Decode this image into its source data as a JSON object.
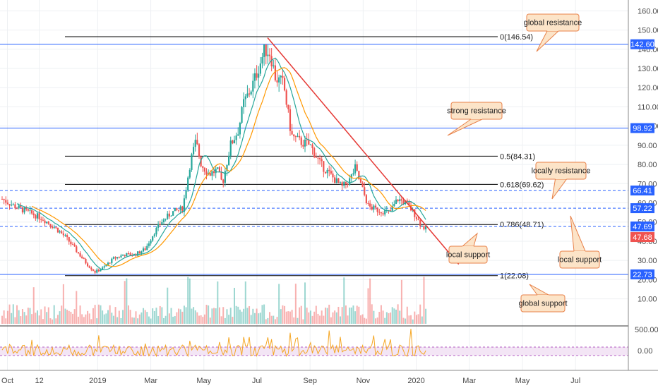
{
  "chart_data": {
    "type": "candlestick",
    "colors": {
      "up": "#26a69a",
      "down": "#ef5350",
      "ma_fast": "#26a69a",
      "ma_slow": "#ff9800",
      "hline": "#2962ff",
      "trendline": "#e53935",
      "fib": "#000000",
      "note_bg": "#fce4c8",
      "note_border": "#e8824a",
      "osc": "#f5a623",
      "osc_band": "#f3e5f5"
    },
    "y_axis": {
      "range": [
        0,
        165
      ],
      "ticks": [
        "160.00",
        "150.00",
        "140.00",
        "130.00",
        "120.00",
        "110.00",
        "100.00",
        "90.00",
        "80.00",
        "70.00",
        "60.00",
        "50.00",
        "40.00",
        "30.00",
        "20.00",
        "10.00"
      ],
      "tick_values": [
        160,
        150,
        140,
        130,
        120,
        110,
        100,
        90,
        80,
        70,
        60,
        50,
        40,
        30,
        20,
        10
      ]
    },
    "osc_axis": {
      "ticks": [
        "500.00",
        "0.00"
      ],
      "tick_values": [
        500,
        0
      ]
    },
    "x_axis": {
      "ticks": [
        "Oct",
        "12",
        "2019",
        "Mar",
        "May",
        "Jul",
        "Sep",
        "Nov",
        "2020",
        "Mar",
        "May",
        "Jul"
      ],
      "tick_positions": [
        0.2,
        1.4,
        3.6,
        5.6,
        7.6,
        9.6,
        11.6,
        13.6,
        15.6,
        17.6,
        19.6,
        21.6
      ]
    },
    "price_path": [
      [
        0,
        62
      ],
      [
        0.5,
        58
      ],
      [
        1.0,
        55
      ],
      [
        1.5,
        52
      ],
      [
        2.0,
        47
      ],
      [
        2.4,
        42
      ],
      [
        2.8,
        35
      ],
      [
        3.2,
        28
      ],
      [
        3.5,
        24
      ],
      [
        3.8,
        26
      ],
      [
        4.2,
        31
      ],
      [
        4.6,
        33
      ],
      [
        5.0,
        33
      ],
      [
        5.4,
        36
      ],
      [
        5.7,
        44
      ],
      [
        6.0,
        50
      ],
      [
        6.4,
        55
      ],
      [
        6.8,
        57
      ],
      [
        7.1,
        82
      ],
      [
        7.3,
        92
      ],
      [
        7.5,
        80
      ],
      [
        7.8,
        75
      ],
      [
        8.1,
        77
      ],
      [
        8.3,
        70
      ],
      [
        8.6,
        90
      ],
      [
        8.9,
        98
      ],
      [
        9.1,
        112
      ],
      [
        9.4,
        120
      ],
      [
        9.7,
        132
      ],
      [
        9.9,
        140
      ],
      [
        10.1,
        138
      ],
      [
        10.3,
        125
      ],
      [
        10.6,
        122
      ],
      [
        10.9,
        95
      ],
      [
        11.2,
        92
      ],
      [
        11.6,
        90
      ],
      [
        12.0,
        80
      ],
      [
        12.4,
        74
      ],
      [
        12.8,
        68
      ],
      [
        13.1,
        72
      ],
      [
        13.3,
        78
      ],
      [
        13.5,
        70
      ],
      [
        13.8,
        58
      ],
      [
        14.2,
        56
      ],
      [
        14.6,
        55
      ],
      [
        14.9,
        62
      ],
      [
        15.2,
        60
      ],
      [
        15.5,
        55
      ],
      [
        15.8,
        48
      ],
      [
        16.0,
        46
      ]
    ],
    "levels": [
      {
        "value": 142.6,
        "label": "142.60",
        "style": "solid"
      },
      {
        "value": 98.92,
        "label": "98.92",
        "style": "solid"
      },
      {
        "value": 66.41,
        "label": "66.41",
        "style": "dashed"
      },
      {
        "value": 57.22,
        "label": "57.22",
        "style": "dashed"
      },
      {
        "value": 47.69,
        "label": "47.69",
        "style": "dashed"
      },
      {
        "value": 22.73,
        "label": "22.73",
        "style": "solid"
      }
    ],
    "last_price": {
      "value": 47.68,
      "label": "47.68"
    },
    "fib_levels": [
      {
        "value": 146.54,
        "label": "0(146.54)"
      },
      {
        "value": 84.31,
        "label": "0.5(84.31)"
      },
      {
        "value": 69.62,
        "label": "0.618(69.62)"
      },
      {
        "value": 48.71,
        "label": "0.786(48.71)"
      },
      {
        "value": 22.08,
        "label": "1(22.08)"
      }
    ],
    "trendline": {
      "from": [
        10.0,
        146
      ],
      "to": [
        17.2,
        28
      ]
    },
    "annotations": [
      {
        "text": "global resistance"
      },
      {
        "text": "strong resistance"
      },
      {
        "text": "locally resistance"
      },
      {
        "text": "local support"
      },
      {
        "text": "local support"
      },
      {
        "text": "global support"
      }
    ]
  }
}
